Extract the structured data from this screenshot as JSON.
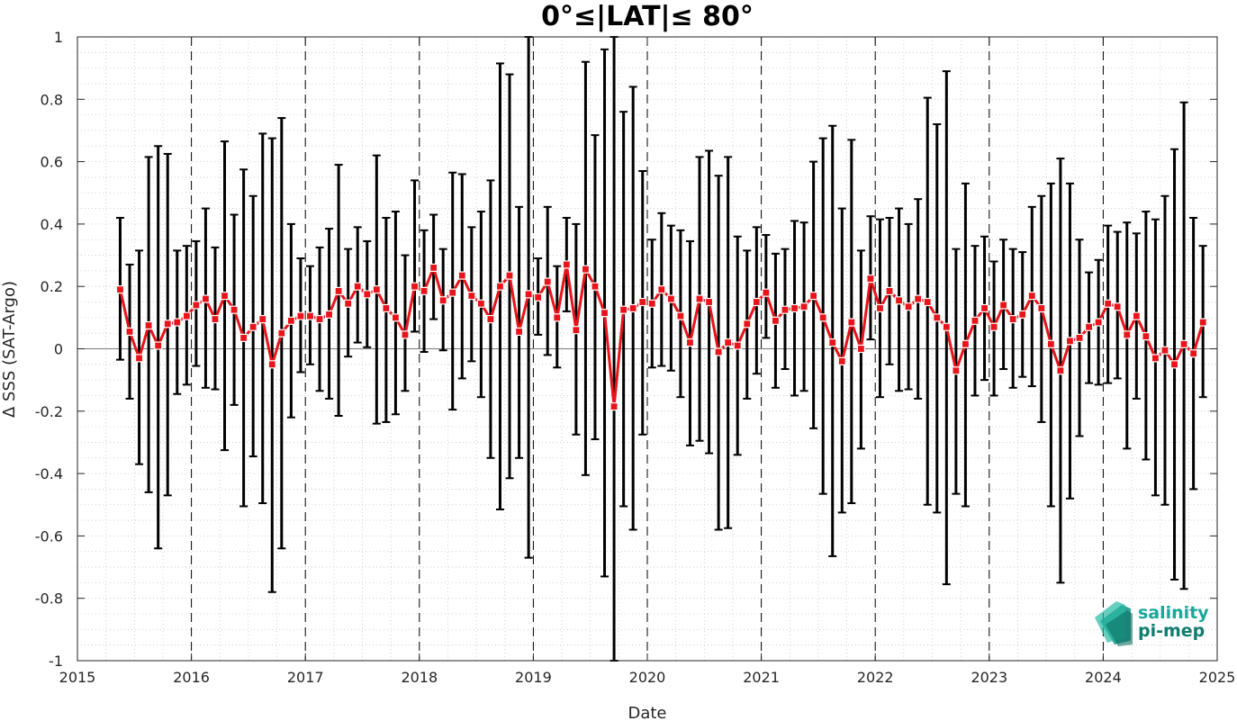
{
  "chart_data": {
    "type": "line",
    "title": "0°≤|LAT|≤ 80°",
    "xlabel": "Date",
    "ylabel": "Δ SSS (SAT-Argo)",
    "xlim": [
      2015,
      2025
    ],
    "ylim": [
      -1,
      1
    ],
    "x_ticks": [
      "2015",
      "2016",
      "2017",
      "2018",
      "2019",
      "2020",
      "2021",
      "2022",
      "2023",
      "2024",
      "2025"
    ],
    "y_ticks": [
      "-1",
      "-0.8",
      "-0.6",
      "-0.4",
      "-0.2",
      "0",
      "0.2",
      "0.4",
      "0.6",
      "0.8",
      "1"
    ],
    "grid": "minor dotted",
    "year_separators": "dashed",
    "series": [
      {
        "color": "#e8141a",
        "marker": "square",
        "errorbar_color": "#000000",
        "x": [
          "2015-05",
          "2015-06",
          "2015-07",
          "2015-08",
          "2015-09",
          "2015-10",
          "2015-11",
          "2015-12",
          "2016-01",
          "2016-02",
          "2016-03",
          "2016-04",
          "2016-05",
          "2016-06",
          "2016-07",
          "2016-08",
          "2016-09",
          "2016-10",
          "2016-11",
          "2016-12",
          "2017-01",
          "2017-02",
          "2017-03",
          "2017-04",
          "2017-05",
          "2017-06",
          "2017-07",
          "2017-08",
          "2017-09",
          "2017-10",
          "2017-11",
          "2017-12",
          "2018-01",
          "2018-02",
          "2018-03",
          "2018-04",
          "2018-05",
          "2018-06",
          "2018-07",
          "2018-08",
          "2018-09",
          "2018-10",
          "2018-11",
          "2018-12",
          "2019-01",
          "2019-02",
          "2019-03",
          "2019-04",
          "2019-05",
          "2019-06",
          "2019-07",
          "2019-08",
          "2019-09",
          "2019-10",
          "2019-11",
          "2019-12",
          "2020-01",
          "2020-02",
          "2020-03",
          "2020-04",
          "2020-05",
          "2020-06",
          "2020-07",
          "2020-08",
          "2020-09",
          "2020-10",
          "2020-11",
          "2020-12",
          "2021-01",
          "2021-02",
          "2021-03",
          "2021-04",
          "2021-05",
          "2021-06",
          "2021-07",
          "2021-08",
          "2021-09",
          "2021-10",
          "2021-11",
          "2021-12",
          "2022-01",
          "2022-02",
          "2022-03",
          "2022-04",
          "2022-05",
          "2022-06",
          "2022-07",
          "2022-08",
          "2022-09",
          "2022-10",
          "2022-11",
          "2022-12",
          "2023-01",
          "2023-02",
          "2023-03",
          "2023-04",
          "2023-05",
          "2023-06",
          "2023-07",
          "2023-08",
          "2023-09",
          "2023-10",
          "2023-11",
          "2023-12",
          "2024-01",
          "2024-02",
          "2024-03",
          "2024-04",
          "2024-05",
          "2024-06",
          "2024-07",
          "2024-08",
          "2024-09",
          "2024-10",
          "2024-11"
        ],
        "y": [
          0.19,
          0.055,
          -0.03,
          0.075,
          0.01,
          0.08,
          0.085,
          0.105,
          0.14,
          0.16,
          0.095,
          0.17,
          0.125,
          0.035,
          0.07,
          0.095,
          -0.05,
          0.05,
          0.09,
          0.105,
          0.105,
          0.095,
          0.11,
          0.185,
          0.145,
          0.2,
          0.175,
          0.19,
          0.13,
          0.1,
          0.045,
          0.2,
          0.185,
          0.26,
          0.155,
          0.18,
          0.235,
          0.17,
          0.145,
          0.095,
          0.2,
          0.235,
          0.055,
          0.175,
          0.165,
          0.215,
          0.1,
          0.27,
          0.06,
          0.255,
          0.2,
          0.115,
          -0.185,
          0.125,
          0.13,
          0.15,
          0.145,
          0.19,
          0.16,
          0.105,
          0.02,
          0.16,
          0.15,
          -0.01,
          0.02,
          0.01,
          0.08,
          0.15,
          0.18,
          0.09,
          0.125,
          0.13,
          0.135,
          0.17,
          0.1,
          0.02,
          -0.04,
          0.085,
          0.0,
          0.225,
          0.13,
          0.185,
          0.155,
          0.135,
          0.16,
          0.15,
          0.1,
          0.07,
          -0.07,
          0.015,
          0.09,
          0.13,
          0.07,
          0.14,
          0.095,
          0.11,
          0.17,
          0.13,
          0.015,
          -0.07,
          0.025,
          0.035,
          0.07,
          0.085,
          0.145,
          0.135,
          0.045,
          0.105,
          0.04,
          -0.03,
          -0.005,
          -0.05,
          0.015,
          -0.015,
          0.085
        ],
        "err_low": [
          -0.035,
          -0.16,
          -0.37,
          -0.46,
          -0.64,
          -0.47,
          -0.145,
          -0.115,
          -0.055,
          -0.125,
          -0.13,
          -0.325,
          -0.18,
          -0.505,
          -0.345,
          -0.495,
          -0.78,
          -0.64,
          -0.22,
          -0.075,
          -0.05,
          -0.135,
          -0.16,
          -0.215,
          -0.025,
          0.02,
          0.005,
          -0.24,
          -0.235,
          -0.21,
          -0.135,
          0.055,
          -0.01,
          0.095,
          -0.005,
          -0.195,
          -0.095,
          -0.04,
          -0.155,
          -0.35,
          -0.515,
          -0.415,
          -0.35,
          -0.67,
          0.045,
          -0.02,
          -0.06,
          0.12,
          -0.275,
          -0.405,
          -0.29,
          -0.73,
          -1.0,
          -0.505,
          -0.58,
          -0.275,
          -0.06,
          -0.055,
          -0.07,
          -0.155,
          -0.31,
          -0.295,
          -0.335,
          -0.58,
          -0.575,
          -0.34,
          -0.16,
          -0.08,
          0.035,
          -0.125,
          -0.065,
          -0.15,
          -0.135,
          -0.255,
          -0.465,
          -0.665,
          -0.525,
          -0.495,
          -0.32,
          0.03,
          -0.155,
          -0.05,
          -0.135,
          -0.13,
          -0.16,
          -0.5,
          -0.525,
          -0.755,
          -0.465,
          -0.505,
          -0.15,
          -0.1,
          -0.15,
          -0.065,
          -0.125,
          -0.09,
          -0.12,
          -0.235,
          -0.505,
          -0.75,
          -0.48,
          -0.28,
          -0.11,
          -0.115,
          -0.11,
          -0.095,
          -0.32,
          -0.16,
          -0.355,
          -0.47,
          -0.5,
          -0.74,
          -0.77,
          -0.45,
          -0.155
        ],
        "err_high": [
          0.42,
          0.27,
          0.315,
          0.615,
          0.65,
          0.625,
          0.315,
          0.33,
          0.345,
          0.45,
          0.325,
          0.665,
          0.43,
          0.575,
          0.49,
          0.69,
          0.675,
          0.74,
          0.4,
          0.29,
          0.265,
          0.325,
          0.385,
          0.59,
          0.32,
          0.39,
          0.345,
          0.62,
          0.42,
          0.44,
          0.3,
          0.54,
          0.38,
          0.43,
          0.32,
          0.565,
          0.56,
          0.39,
          0.44,
          0.54,
          0.915,
          0.88,
          0.455,
          1.0,
          0.29,
          0.455,
          0.265,
          0.42,
          0.4,
          0.92,
          0.685,
          0.96,
          1.0,
          0.76,
          0.84,
          0.57,
          0.35,
          0.435,
          0.395,
          0.38,
          0.345,
          0.615,
          0.635,
          0.555,
          0.615,
          0.36,
          0.315,
          0.39,
          0.365,
          0.305,
          0.32,
          0.41,
          0.405,
          0.6,
          0.675,
          0.715,
          0.45,
          0.67,
          0.315,
          0.425,
          0.415,
          0.42,
          0.45,
          0.4,
          0.48,
          0.805,
          0.72,
          0.89,
          0.32,
          0.53,
          0.33,
          0.36,
          0.28,
          0.35,
          0.32,
          0.31,
          0.455,
          0.49,
          0.53,
          0.61,
          0.53,
          0.35,
          0.245,
          0.285,
          0.395,
          0.375,
          0.405,
          0.37,
          0.44,
          0.415,
          0.49,
          0.64,
          0.79,
          0.42,
          0.33
        ]
      }
    ]
  },
  "logo": {
    "line1": "salinity",
    "line2": "pi-mep",
    "color1": "#17a89a",
    "color2": "#0f7d70"
  }
}
